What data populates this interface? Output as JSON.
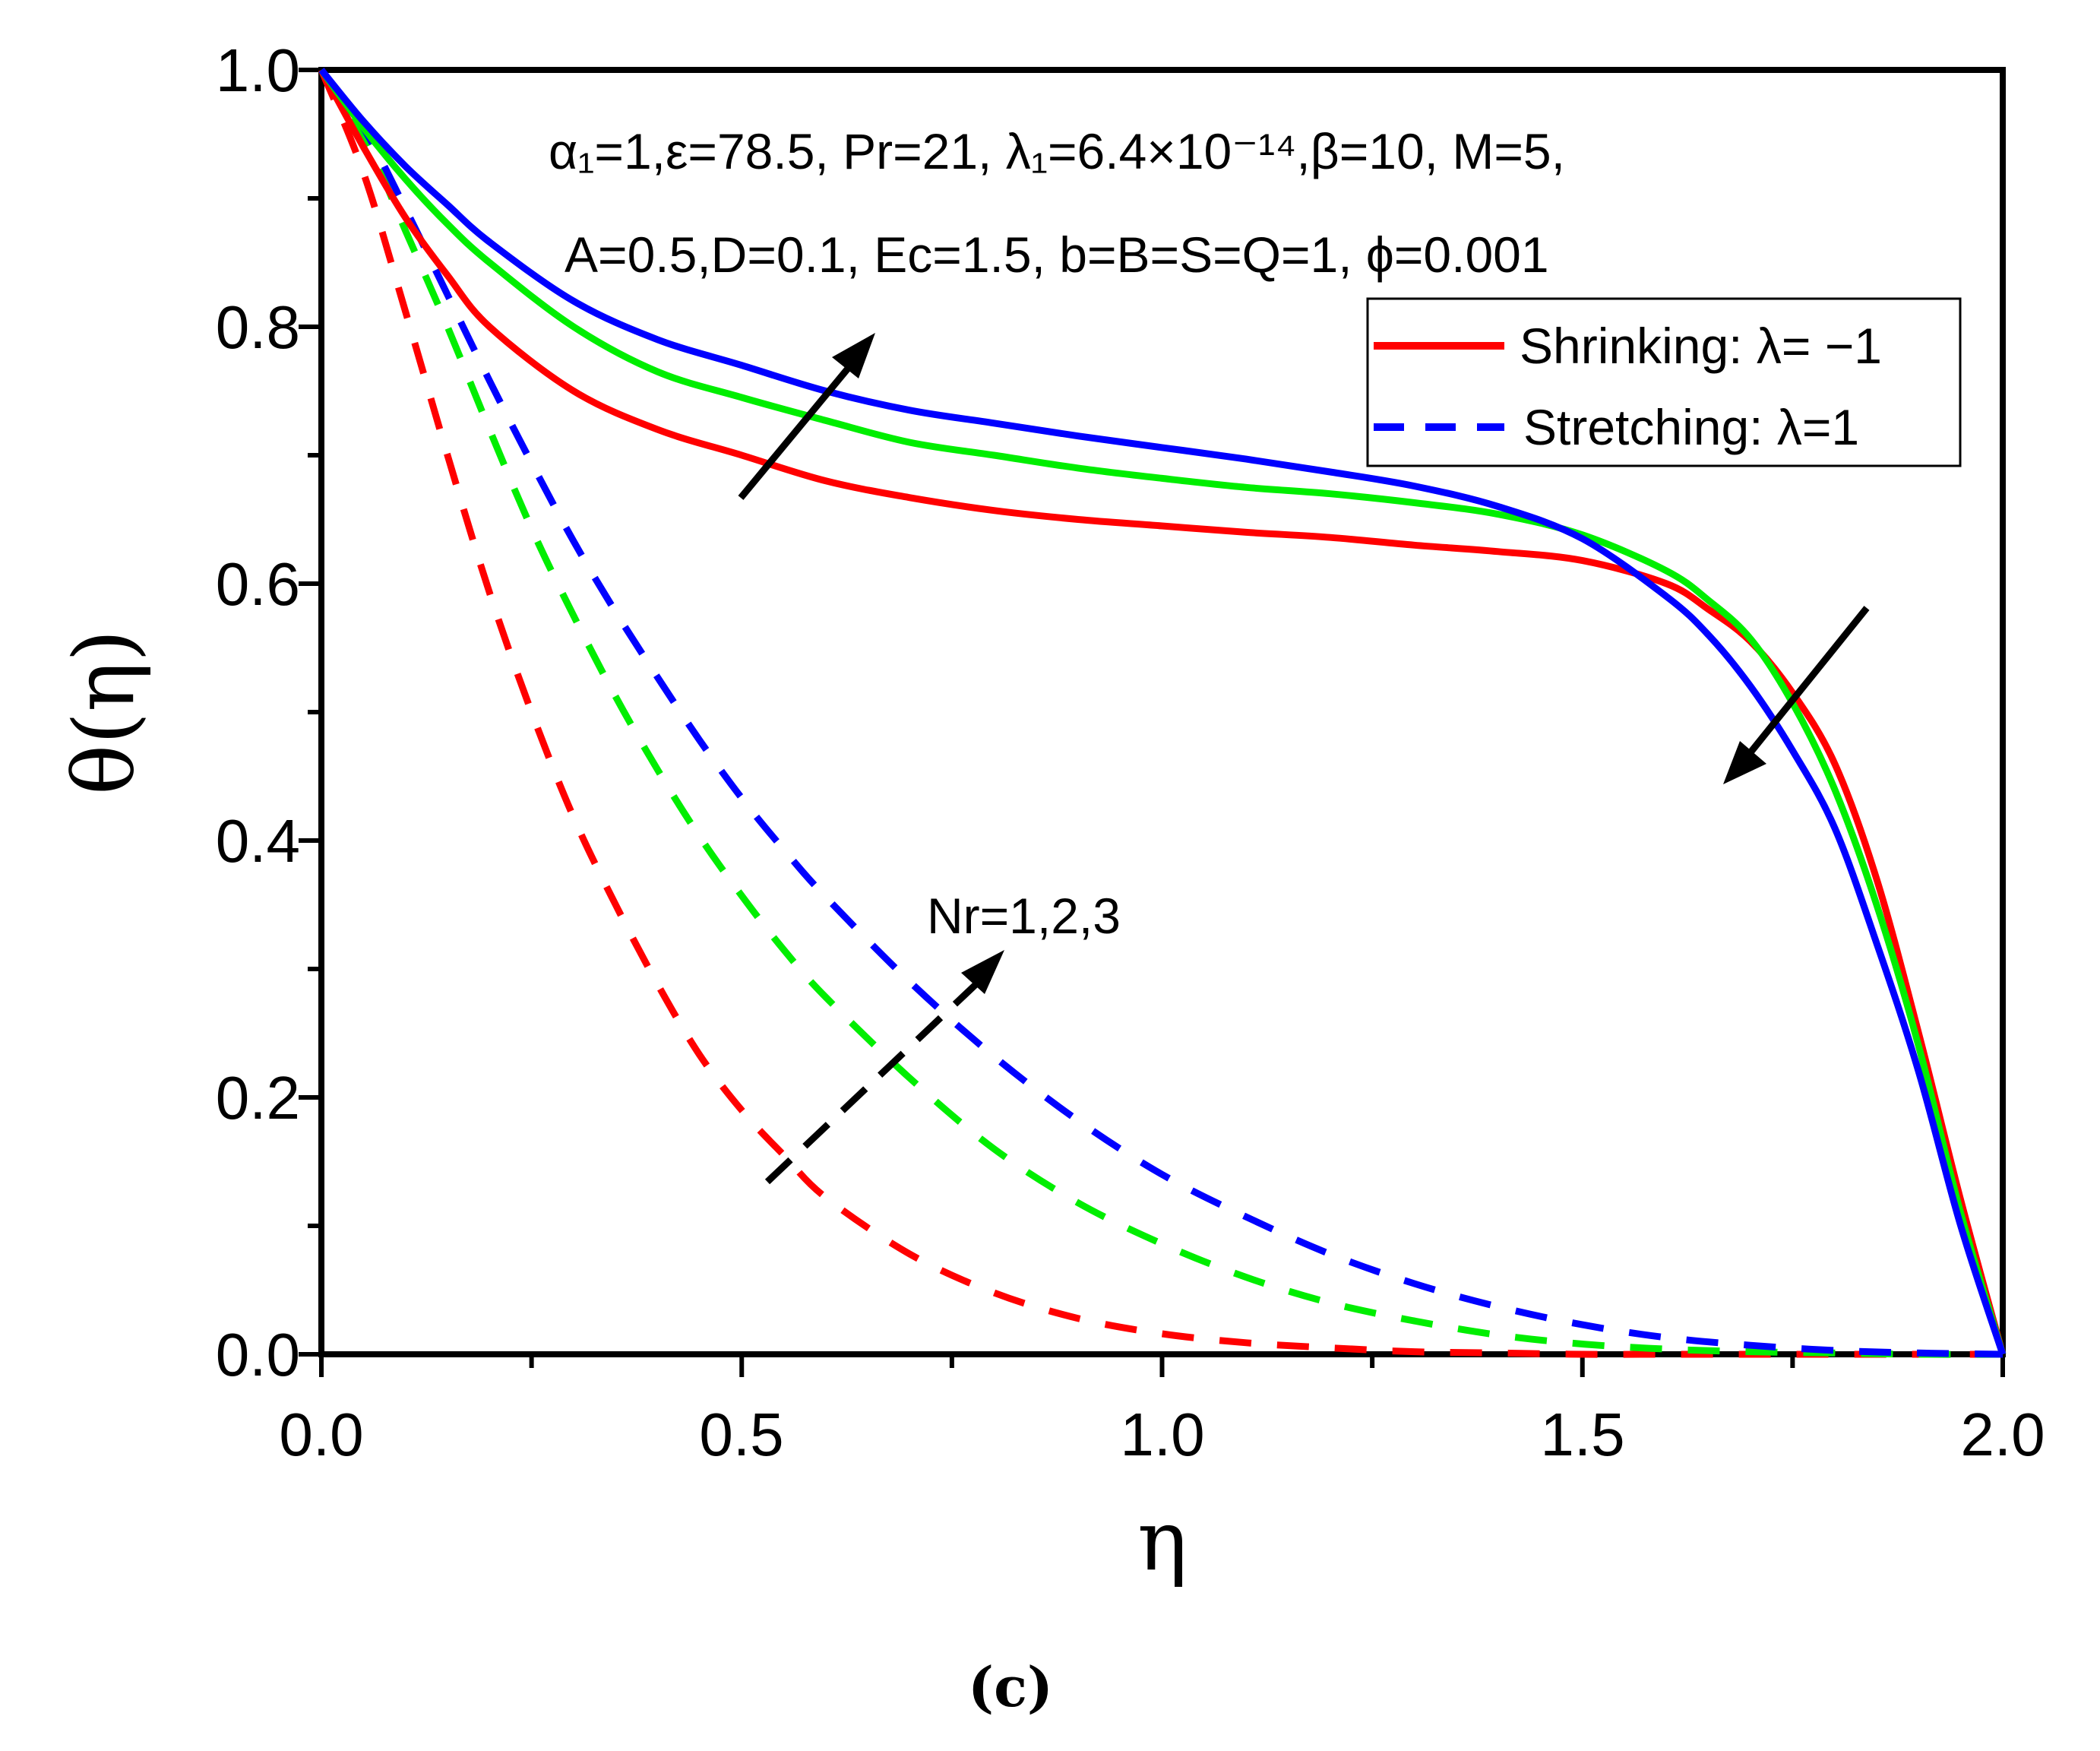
{
  "chart_data": {
    "type": "line",
    "xlabel": "η",
    "ylabel": "θ(η)",
    "xlim": [
      0,
      2
    ],
    "ylim": [
      0,
      1
    ],
    "xticks": [
      "0.0",
      "0.5",
      "1.0",
      "1.5",
      "2.0"
    ],
    "yticks": [
      "0.0",
      "0.2",
      "0.4",
      "0.6",
      "0.8",
      "1.0"
    ],
    "grid": false,
    "legend_position": "top-right",
    "legend": [
      {
        "label": "Shrinking: λ= −1",
        "style": "solid"
      },
      {
        "label": "Stretching: λ=1",
        "style": "dashed"
      }
    ],
    "annotations": {
      "params_line1": "α₁=1,ε=78.5, Pr=21, λ₁=6.4×10⁻¹⁴,β=10, M=5,",
      "params_line2": "A=0.5,D=0.1, Ec=1.5, b=B=S=Q=1, ϕ=0.001",
      "nr_label": "Nr=1,2,3"
    },
    "caption": "(c)",
    "series": [
      {
        "name": "Shrinking Nr=1",
        "color": "#ff0000",
        "dash": false,
        "x": [
          0,
          0.05,
          0.1,
          0.15,
          0.2,
          0.3,
          0.4,
          0.5,
          0.6,
          0.7,
          0.8,
          0.9,
          1.0,
          1.1,
          1.2,
          1.3,
          1.4,
          1.5,
          1.6,
          1.65,
          1.7,
          1.75,
          1.8,
          1.85,
          1.9,
          1.95,
          2.0
        ],
        "y": [
          1.0,
          0.94,
          0.885,
          0.84,
          0.8,
          0.75,
          0.72,
          0.7,
          0.68,
          0.667,
          0.657,
          0.65,
          0.645,
          0.64,
          0.636,
          0.63,
          0.625,
          0.618,
          0.6,
          0.58,
          0.555,
          0.515,
          0.46,
          0.37,
          0.25,
          0.12,
          0.0
        ]
      },
      {
        "name": "Shrinking Nr=2",
        "color": "#00ee00",
        "dash": false,
        "x": [
          0,
          0.05,
          0.1,
          0.15,
          0.2,
          0.3,
          0.4,
          0.5,
          0.6,
          0.7,
          0.8,
          0.9,
          1.0,
          1.1,
          1.2,
          1.3,
          1.4,
          1.5,
          1.6,
          1.65,
          1.7,
          1.75,
          1.8,
          1.85,
          1.9,
          1.95,
          2.0
        ],
        "y": [
          1.0,
          0.955,
          0.915,
          0.88,
          0.85,
          0.8,
          0.765,
          0.745,
          0.727,
          0.71,
          0.7,
          0.69,
          0.682,
          0.675,
          0.67,
          0.663,
          0.654,
          0.638,
          0.61,
          0.587,
          0.557,
          0.507,
          0.44,
          0.35,
          0.24,
          0.11,
          0.0
        ]
      },
      {
        "name": "Shrinking Nr=3",
        "color": "#0000ff",
        "dash": false,
        "x": [
          0,
          0.05,
          0.1,
          0.15,
          0.2,
          0.3,
          0.4,
          0.5,
          0.6,
          0.7,
          0.8,
          0.9,
          1.0,
          1.1,
          1.2,
          1.3,
          1.4,
          1.5,
          1.6,
          1.65,
          1.7,
          1.75,
          1.8,
          1.85,
          1.9,
          1.95,
          2.0
        ],
        "y": [
          1.0,
          0.96,
          0.925,
          0.895,
          0.866,
          0.82,
          0.79,
          0.77,
          0.75,
          0.735,
          0.725,
          0.715,
          0.706,
          0.697,
          0.687,
          0.676,
          0.66,
          0.635,
          0.59,
          0.56,
          0.52,
          0.47,
          0.41,
          0.32,
          0.22,
          0.1,
          0.0
        ]
      },
      {
        "name": "Stretching Nr=1",
        "color": "#ff0000",
        "dash": true,
        "x": [
          0,
          0.05,
          0.1,
          0.15,
          0.2,
          0.25,
          0.3,
          0.35,
          0.4,
          0.45,
          0.5,
          0.55,
          0.6,
          0.7,
          0.8,
          0.9,
          1.0,
          1.1,
          1.2,
          1.3,
          1.4,
          1.5,
          1.6,
          1.7,
          1.8,
          1.9,
          2.0
        ],
        "y": [
          1.0,
          0.92,
          0.812,
          0.7,
          0.593,
          0.5,
          0.418,
          0.35,
          0.288,
          0.233,
          0.19,
          0.155,
          0.122,
          0.078,
          0.048,
          0.028,
          0.016,
          0.009,
          0.005,
          0.002,
          0.001,
          0.0,
          0.0,
          0.0,
          0.0,
          0.0,
          0.0
        ]
      },
      {
        "name": "Stretching Nr=2",
        "color": "#00ee00",
        "dash": true,
        "x": [
          0,
          0.05,
          0.1,
          0.15,
          0.2,
          0.25,
          0.3,
          0.35,
          0.4,
          0.45,
          0.5,
          0.55,
          0.6,
          0.7,
          0.8,
          0.9,
          1.0,
          1.1,
          1.2,
          1.3,
          1.4,
          1.5,
          1.6,
          1.7,
          1.8,
          1.9,
          2.0
        ],
        "y": [
          1.0,
          0.95,
          0.875,
          0.8,
          0.72,
          0.643,
          0.575,
          0.512,
          0.455,
          0.403,
          0.357,
          0.315,
          0.278,
          0.215,
          0.16,
          0.118,
          0.086,
          0.06,
          0.04,
          0.026,
          0.015,
          0.008,
          0.004,
          0.002,
          0.001,
          0.0,
          0.0
        ]
      },
      {
        "name": "Stretching Nr=3",
        "color": "#0000ff",
        "dash": true,
        "x": [
          0,
          0.05,
          0.1,
          0.15,
          0.2,
          0.25,
          0.3,
          0.35,
          0.4,
          0.45,
          0.5,
          0.55,
          0.6,
          0.7,
          0.8,
          0.9,
          1.0,
          1.1,
          1.2,
          1.3,
          1.4,
          1.5,
          1.6,
          1.7,
          1.8,
          1.9,
          2.0
        ],
        "y": [
          1.0,
          0.955,
          0.892,
          0.825,
          0.758,
          0.694,
          0.633,
          0.578,
          0.527,
          0.478,
          0.433,
          0.393,
          0.356,
          0.29,
          0.232,
          0.182,
          0.14,
          0.107,
          0.078,
          0.055,
          0.037,
          0.023,
          0.013,
          0.007,
          0.003,
          0.001,
          0.0
        ]
      }
    ]
  }
}
